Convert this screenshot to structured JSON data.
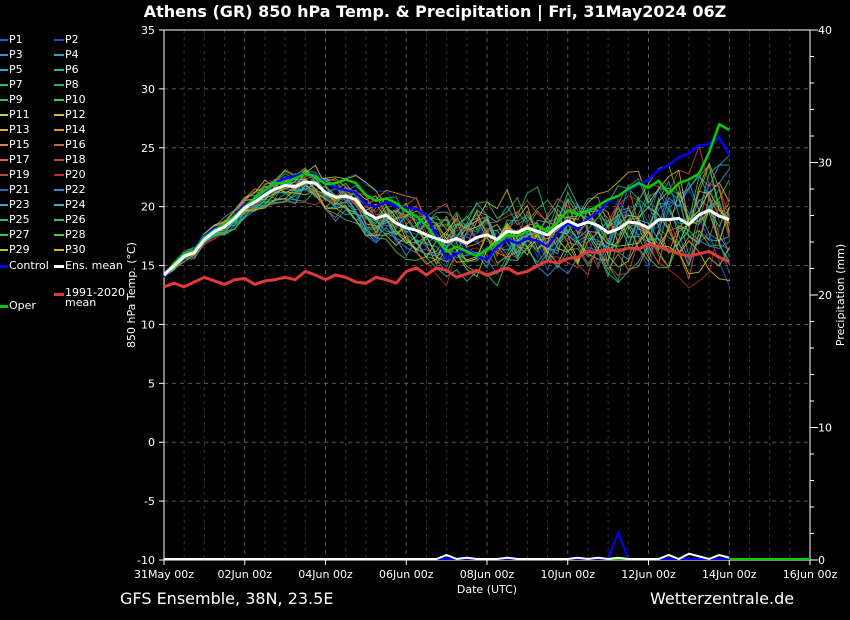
{
  "title": "Athens  (GR)  850 hPa Temp. & Precipitation | Fri, 31May2024 06Z",
  "footer": {
    "left": "GFS Ensemble, 38N, 23.5E",
    "right": "Wetterzentrale.de"
  },
  "colors": {
    "background": "#000000",
    "ens_mean": "#ffffff",
    "control": "#0000ff",
    "oper": "#00cc00",
    "climate": "#e03a3a"
  },
  "legend": {
    "members": [
      {
        "label": "P1",
        "color": "#1f5fd0"
      },
      {
        "label": "P2",
        "color": "#1f4fc8"
      },
      {
        "label": "P3",
        "color": "#3a8fd8"
      },
      {
        "label": "P4",
        "color": "#2fa0d0"
      },
      {
        "label": "P5",
        "color": "#2aa8c8"
      },
      {
        "label": "P6",
        "color": "#1fb8a0"
      },
      {
        "label": "P7",
        "color": "#2ab890"
      },
      {
        "label": "P8",
        "color": "#22b070"
      },
      {
        "label": "P9",
        "color": "#30c060"
      },
      {
        "label": "P10",
        "color": "#40d040"
      },
      {
        "label": "P11",
        "color": "#c8d030"
      },
      {
        "label": "P12",
        "color": "#d0c028"
      },
      {
        "label": "P13",
        "color": "#d8b028"
      },
      {
        "label": "P14",
        "color": "#d89830"
      },
      {
        "label": "P15",
        "color": "#d88048"
      },
      {
        "label": "P16",
        "color": "#c86838"
      },
      {
        "label": "P17",
        "color": "#d86840"
      },
      {
        "label": "P18",
        "color": "#c05030"
      },
      {
        "label": "P19",
        "color": "#c84038"
      },
      {
        "label": "P20",
        "color": "#b83028"
      },
      {
        "label": "P21",
        "color": "#3060c0"
      },
      {
        "label": "P22",
        "color": "#2890d0"
      },
      {
        "label": "P23",
        "color": "#38a8c8"
      },
      {
        "label": "P24",
        "color": "#30b8b0"
      },
      {
        "label": "P25",
        "color": "#28b890"
      },
      {
        "label": "P26",
        "color": "#30c070"
      },
      {
        "label": "P27",
        "color": "#40c050"
      },
      {
        "label": "P28",
        "color": "#50c840"
      },
      {
        "label": "P29",
        "color": "#b0c830"
      },
      {
        "label": "P30",
        "color": "#d0b820"
      }
    ],
    "control": "Control",
    "ens_mean": "Ens. mean",
    "climate": "1991-2020\nmean",
    "oper": "Oper"
  },
  "chart_data": {
    "type": "line",
    "xlabel": "Date (UTC)",
    "ylabel": "850 hPa Temp. (°C)",
    "y2label": "Precipitation (mm)",
    "ylim": [
      -10,
      35
    ],
    "y2lim": [
      0,
      40
    ],
    "yticks": [
      "35",
      "30",
      "25",
      "20",
      "15",
      "10",
      "5",
      "0",
      "-5",
      "-10"
    ],
    "y2ticks": [
      "40",
      "30",
      "20",
      "10",
      "0"
    ],
    "xticks": [
      "31May 00z",
      "02Jun 00z",
      "04Jun 00z",
      "06Jun 00z",
      "08Jun 00z",
      "10Jun 00z",
      "12Jun 00z",
      "14Jun 00z",
      "16Jun 00z"
    ],
    "x_step_hours": 6,
    "grid": true,
    "series": [
      {
        "name": "Ens. mean",
        "values": [
          14.2,
          15.0,
          15.8,
          16.1,
          17.2,
          17.9,
          18.3,
          19.0,
          19.9,
          20.4,
          21.0,
          21.5,
          21.8,
          21.7,
          22.1,
          22.0,
          21.2,
          20.8,
          20.9,
          20.6,
          19.5,
          19.0,
          19.3,
          18.6,
          18.2,
          18.0,
          17.6,
          17.3,
          17.0,
          17.3,
          16.9,
          17.4,
          17.6,
          17.2,
          17.9,
          17.8,
          18.2,
          17.9,
          17.6,
          18.3,
          18.8,
          18.4,
          18.7,
          18.4,
          17.8,
          18.1,
          18.7,
          18.6,
          18.2,
          18.9,
          18.9,
          19.0,
          18.5,
          19.3,
          19.7,
          19.2,
          18.9
        ]
      },
      {
        "name": "Control",
        "values": [
          14.0,
          15.0,
          15.8,
          16.4,
          17.5,
          18.2,
          18.4,
          19.3,
          20.2,
          20.6,
          21.3,
          22.0,
          22.4,
          22.6,
          22.8,
          22.7,
          22.0,
          21.6,
          21.4,
          21.2,
          20.2,
          20.0,
          20.4,
          20.0,
          19.9,
          19.8,
          19.3,
          17.5,
          15.5,
          16.0,
          16.4,
          15.8,
          15.5,
          16.6,
          17.2,
          16.9,
          17.3,
          17.1,
          16.6,
          17.8,
          18.6,
          18.1,
          19.0,
          19.5,
          20.4,
          20.9,
          21.4,
          21.9,
          22.3,
          23.1,
          23.5,
          24.2,
          24.5,
          25.2,
          25.3,
          25.9,
          24.4
        ]
      },
      {
        "name": "Oper",
        "values": [
          14.1,
          15.2,
          16.0,
          16.3,
          17.4,
          18.0,
          18.5,
          19.2,
          20.0,
          20.7,
          21.4,
          22.0,
          22.0,
          22.4,
          22.8,
          22.6,
          21.9,
          22.0,
          22.3,
          22.0,
          21.0,
          20.5,
          20.7,
          20.3,
          19.6,
          19.2,
          18.4,
          17.2,
          16.2,
          16.6,
          16.2,
          15.8,
          16.4,
          16.9,
          17.6,
          17.5,
          17.9,
          18.4,
          17.9,
          18.7,
          19.7,
          19.3,
          19.6,
          20.1,
          20.6,
          20.9,
          21.5,
          22.0,
          21.6,
          22.2,
          21.1,
          22.0,
          22.3,
          22.8,
          24.6,
          27.0,
          26.5
        ]
      },
      {
        "name": "1991-2020 mean",
        "values": [
          13.2,
          13.5,
          13.2,
          13.6,
          14.0,
          13.7,
          13.4,
          13.8,
          13.9,
          13.4,
          13.7,
          13.8,
          14.0,
          13.8,
          14.5,
          14.2,
          13.8,
          14.2,
          14.0,
          13.6,
          13.5,
          14.0,
          13.8,
          13.5,
          14.5,
          14.8,
          14.2,
          14.8,
          14.6,
          14.0,
          14.3,
          14.6,
          14.2,
          14.5,
          14.8,
          14.3,
          14.5,
          15.0,
          15.4,
          15.2,
          15.6,
          15.7,
          16.2,
          16.1,
          16.4,
          16.2,
          16.5,
          16.4,
          16.8,
          16.6,
          16.3,
          16.0,
          15.8,
          16.0,
          16.2,
          15.7,
          15.3
        ]
      }
    ],
    "precip_series": [
      {
        "name": "Control",
        "values": [
          0,
          0,
          0,
          0,
          0,
          0,
          0,
          0,
          0,
          0,
          0,
          0,
          0,
          0,
          0,
          0,
          0,
          0,
          0,
          0,
          0,
          0,
          0,
          0,
          0,
          0,
          0,
          0,
          0,
          0,
          0,
          0,
          0,
          0,
          0,
          0,
          0,
          0,
          0,
          0,
          0,
          0,
          0,
          0,
          0,
          2,
          0,
          0,
          0,
          0,
          0,
          0,
          0,
          0,
          0,
          0,
          0
        ]
      },
      {
        "name": "Ens. mean",
        "values": [
          0,
          0,
          0,
          0,
          0,
          0,
          0,
          0,
          0,
          0,
          0,
          0,
          0,
          0,
          0,
          0,
          0,
          0,
          0,
          0,
          0,
          0,
          0,
          0,
          0,
          0,
          0,
          0,
          0.3,
          0,
          0.1,
          0,
          0,
          0,
          0.1,
          0,
          0,
          0,
          0,
          0,
          0,
          0.1,
          0,
          0.1,
          0,
          0.1,
          0,
          0,
          0,
          0,
          0.3,
          0,
          0.4,
          0.2,
          0,
          0.3,
          0.1
        ]
      }
    ]
  }
}
